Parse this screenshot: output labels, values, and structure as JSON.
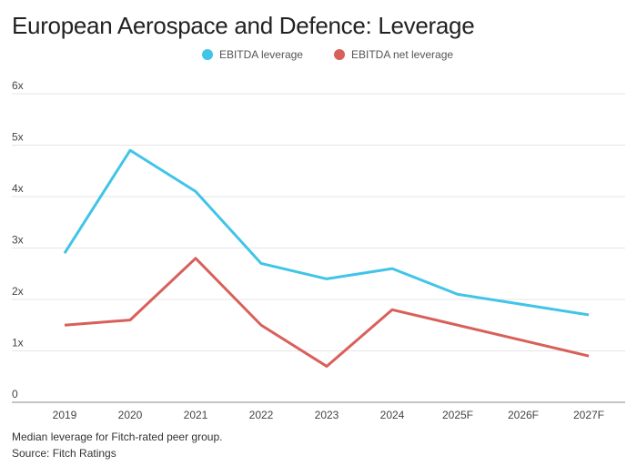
{
  "chart_data": {
    "type": "line",
    "title": "European Aerospace and Defence: Leverage",
    "categories": [
      "2019",
      "2020",
      "2021",
      "2022",
      "2023",
      "2024",
      "2025F",
      "2026F",
      "2027F"
    ],
    "series": [
      {
        "name": "EBITDA leverage",
        "color": "#41c4e8",
        "values": [
          2.9,
          4.9,
          4.1,
          2.7,
          2.4,
          2.6,
          2.1,
          1.9,
          1.7
        ]
      },
      {
        "name": "EBITDA net leverage",
        "color": "#d9605a",
        "values": [
          1.5,
          1.6,
          2.8,
          1.5,
          0.7,
          1.8,
          1.5,
          1.2,
          0.9
        ]
      }
    ],
    "yticks": [
      {
        "value": 0,
        "label": "0"
      },
      {
        "value": 1,
        "label": "1x"
      },
      {
        "value": 2,
        "label": "2x"
      },
      {
        "value": 3,
        "label": "3x"
      },
      {
        "value": 4,
        "label": "4x"
      },
      {
        "value": 5,
        "label": "5x"
      },
      {
        "value": 6,
        "label": "6x"
      }
    ],
    "ylim": [
      0,
      6
    ],
    "xlabel": "",
    "ylabel": "",
    "grid": true,
    "legend_position": "top-center"
  },
  "footer": {
    "note": "Median leverage for Fitch-rated peer group.",
    "source": "Source: Fitch Ratings"
  }
}
